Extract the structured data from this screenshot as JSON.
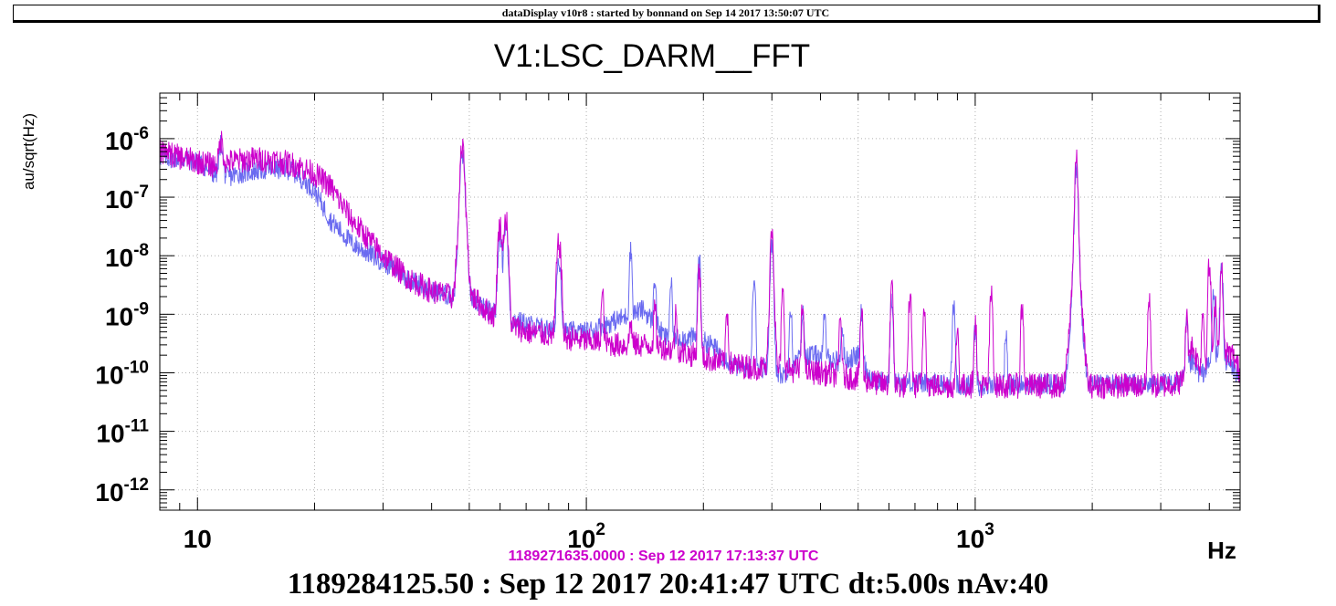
{
  "banner": "dataDisplay v10r8 : started by bonnand on Sep 14 2017 13:50:07 UTC",
  "time_main": "1189284125.50 : Sep 12 2017 20:41:47 UTC dt:5.00s nAv:40",
  "time_ref": "1189271635.0000 : Sep 12 2017 17:13:37 UTC",
  "colors": {
    "series_blue": "#6a6af0",
    "series_magenta": "#cc00cc",
    "grid": "#b0b0b0"
  },
  "chart_data": {
    "type": "line",
    "title": "V1:LSC_DARM__FFT",
    "ylabel": "au/sqrt(Hz)",
    "xlabel": "Hz",
    "x_scale": "log",
    "y_scale": "log",
    "xlim": [
      8,
      4800
    ],
    "ylim": [
      4.5e-13,
      6e-06
    ],
    "x_tick_labels": [
      {
        "value": 10,
        "base": "10",
        "exp": ""
      },
      {
        "value": 100,
        "base": "10",
        "exp": "2"
      },
      {
        "value": 1000,
        "base": "10",
        "exp": "3"
      }
    ],
    "y_tick_labels": [
      {
        "value": 1e-06,
        "base": "10",
        "exp": "-6"
      },
      {
        "value": 1e-07,
        "base": "10",
        "exp": "-7"
      },
      {
        "value": 1e-08,
        "base": "10",
        "exp": "-8"
      },
      {
        "value": 1e-09,
        "base": "10",
        "exp": "-9"
      },
      {
        "value": 1e-10,
        "base": "10",
        "exp": "-10"
      },
      {
        "value": 1e-11,
        "base": "10",
        "exp": "-11"
      },
      {
        "value": 1e-12,
        "base": "10",
        "exp": "-12"
      }
    ],
    "grid": true,
    "series": [
      {
        "color": "#6a6af0",
        "baseline": [
          [
            8,
            5e-07
          ],
          [
            10,
            4e-07
          ],
          [
            11,
            2.5e-07
          ],
          [
            12,
            2.2e-07
          ],
          [
            13,
            2.6e-07
          ],
          [
            15,
            3e-07
          ],
          [
            17,
            3e-07
          ],
          [
            18,
            2.5e-07
          ],
          [
            20,
            1.3e-07
          ],
          [
            22,
            4e-08
          ],
          [
            25,
            1.6e-08
          ],
          [
            30,
            8e-09
          ],
          [
            35,
            4e-09
          ],
          [
            40,
            2.5e-09
          ],
          [
            45,
            2e-09
          ],
          [
            50,
            2e-09
          ],
          [
            55,
            1.2e-09
          ],
          [
            60,
            1e-09
          ],
          [
            65,
            8e-10
          ],
          [
            75,
            6e-10
          ],
          [
            85,
            5e-10
          ],
          [
            100,
            5e-10
          ],
          [
            120,
            8e-10
          ],
          [
            140,
            1.2e-09
          ],
          [
            160,
            4e-10
          ],
          [
            190,
            4e-10
          ],
          [
            210,
            3e-10
          ],
          [
            220,
            2.2e-10
          ],
          [
            240,
            1.3e-10
          ],
          [
            270,
            1.2e-10
          ],
          [
            300,
            1.2e-10
          ],
          [
            320,
            9e-11
          ],
          [
            360,
            2e-10
          ],
          [
            400,
            2e-10
          ],
          [
            450,
            1.5e-10
          ],
          [
            500,
            2e-10
          ],
          [
            530,
            1e-10
          ],
          [
            560,
            7e-11
          ],
          [
            700,
            7e-11
          ],
          [
            1000,
            6e-11
          ],
          [
            2000,
            6.5e-11
          ],
          [
            3000,
            6.5e-11
          ],
          [
            3400,
            7e-11
          ],
          [
            3600,
            1.5e-10
          ],
          [
            3800,
            9e-11
          ],
          [
            4200,
            2e-10
          ],
          [
            4600,
            1.2e-10
          ],
          [
            4800,
            8e-11
          ]
        ],
        "peaks": [
          [
            11.5,
            8e-07
          ],
          [
            48,
            5e-07
          ],
          [
            60,
            2e-08
          ],
          [
            62,
            3e-08
          ],
          [
            85,
            8e-09
          ],
          [
            130,
            1.2e-08
          ],
          [
            150,
            4e-09
          ],
          [
            165,
            3e-09
          ],
          [
            195,
            8e-09
          ],
          [
            270,
            4e-09
          ],
          [
            300,
            1.5e-08
          ],
          [
            335,
            1.2e-09
          ],
          [
            360,
            1e-09
          ],
          [
            410,
            8e-10
          ],
          [
            455,
            6e-10
          ],
          [
            510,
            1e-09
          ],
          [
            610,
            1.6e-09
          ],
          [
            880,
            1.3e-09
          ],
          [
            1000,
            5e-10
          ],
          [
            1200,
            4e-10
          ],
          [
            1820,
            3e-07
          ],
          [
            3500,
            6e-10
          ],
          [
            4100,
            2e-09
          ],
          [
            4300,
            6e-09
          ]
        ],
        "noise": 0.18
      },
      {
        "color": "#cc00cc",
        "baseline": [
          [
            8,
            6e-07
          ],
          [
            10,
            4e-07
          ],
          [
            11,
            3.5e-07
          ],
          [
            12,
            4e-07
          ],
          [
            14,
            4.5e-07
          ],
          [
            16,
            4.2e-07
          ],
          [
            18,
            3.5e-07
          ],
          [
            20,
            2.5e-07
          ],
          [
            22,
            1.5e-07
          ],
          [
            25,
            4e-08
          ],
          [
            30,
            1e-08
          ],
          [
            35,
            4e-09
          ],
          [
            40,
            2.5e-09
          ],
          [
            45,
            2e-09
          ],
          [
            48,
            3e-09
          ],
          [
            55,
            1.2e-09
          ],
          [
            60,
            8e-10
          ],
          [
            70,
            5e-10
          ],
          [
            80,
            4.5e-10
          ],
          [
            100,
            3.5e-10
          ],
          [
            120,
            3e-10
          ],
          [
            150,
            3e-10
          ],
          [
            200,
            1.8e-10
          ],
          [
            250,
            1.3e-10
          ],
          [
            300,
            1.2e-10
          ],
          [
            400,
            1e-10
          ],
          [
            500,
            8e-11
          ],
          [
            600,
            6e-11
          ],
          [
            800,
            6e-11
          ],
          [
            1000,
            6e-11
          ],
          [
            2000,
            6e-11
          ],
          [
            3000,
            6e-11
          ],
          [
            3400,
            7e-11
          ],
          [
            3600,
            3e-10
          ],
          [
            3800,
            1.2e-10
          ],
          [
            4200,
            2.5e-10
          ],
          [
            4600,
            2e-10
          ],
          [
            4800,
            1e-10
          ]
        ],
        "peaks": [
          [
            11.5,
            9e-07
          ],
          [
            48,
            6e-07
          ],
          [
            60,
            3e-08
          ],
          [
            62,
            4e-08
          ],
          [
            85,
            1.5e-08
          ],
          [
            110,
            2e-09
          ],
          [
            130,
            7e-10
          ],
          [
            150,
            1.2e-09
          ],
          [
            170,
            1e-09
          ],
          [
            195,
            5e-09
          ],
          [
            230,
            1e-09
          ],
          [
            300,
            3e-08
          ],
          [
            320,
            2e-09
          ],
          [
            360,
            1.2e-09
          ],
          [
            450,
            8e-10
          ],
          [
            510,
            1e-09
          ],
          [
            610,
            2.5e-09
          ],
          [
            680,
            1.8e-09
          ],
          [
            740,
            1.2e-09
          ],
          [
            900,
            5e-10
          ],
          [
            1000,
            7e-10
          ],
          [
            1100,
            2e-09
          ],
          [
            1320,
            1.2e-09
          ],
          [
            1820,
            4e-07
          ],
          [
            2800,
            1.5e-09
          ],
          [
            3500,
            8e-10
          ],
          [
            3850,
            1e-09
          ],
          [
            4000,
            6e-09
          ],
          [
            4150,
            1.5e-09
          ],
          [
            4300,
            5e-09
          ]
        ],
        "noise": 0.22
      }
    ]
  }
}
